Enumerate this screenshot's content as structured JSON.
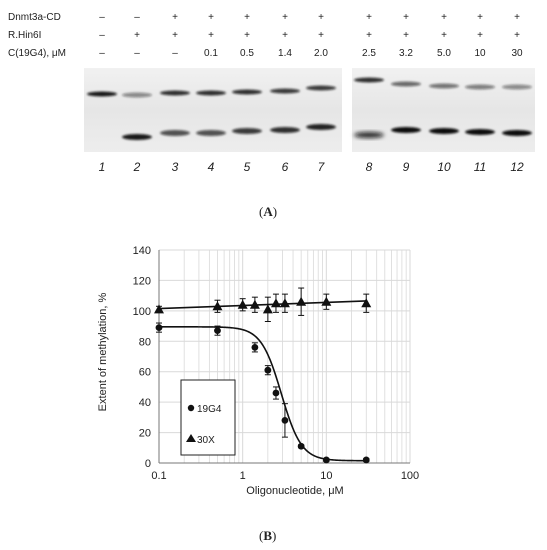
{
  "panel_a": {
    "label": "A",
    "rows": [
      {
        "label": "Dnmt3a-CD",
        "values": [
          "–",
          "–",
          "+",
          "+",
          "+",
          "+",
          "+",
          "+",
          "+",
          "+",
          "+",
          "+"
        ]
      },
      {
        "label": "R.Hin6I",
        "values": [
          "–",
          "+",
          "+",
          "+",
          "+",
          "+",
          "+",
          "+",
          "+",
          "+",
          "+",
          "+"
        ]
      },
      {
        "label": "C(19G4), μM",
        "values": [
          "–",
          "–",
          "–",
          "0.1",
          "0.5",
          "1.4",
          "2.0",
          "2.5",
          "3.2",
          "5.0",
          "10",
          "30"
        ]
      }
    ],
    "lanes": [
      "1",
      "2",
      "3",
      "4",
      "5",
      "6",
      "7",
      "8",
      "9",
      "10",
      "11",
      "12"
    ]
  },
  "panel_b": {
    "label": "B",
    "chart_data": {
      "type": "scatter",
      "xlabel": "Oligonucleotide, μM",
      "ylabel": "Extent of methylation, %",
      "xscale": "log",
      "xlim": [
        0.1,
        100
      ],
      "ylim": [
        0,
        140
      ],
      "xticks": [
        "0.1",
        "1",
        "10",
        "100"
      ],
      "yticks": [
        "0",
        "20",
        "40",
        "60",
        "80",
        "100",
        "120",
        "140"
      ],
      "grid": true,
      "legend_position": "lower-left",
      "series": [
        {
          "name": "19G4",
          "marker": "circle",
          "fit": "sigmoid",
          "x": [
            0.1,
            0.5,
            1.4,
            2.0,
            2.5,
            3.2,
            5.0,
            10,
            30
          ],
          "y": [
            89,
            87,
            76,
            61,
            46,
            28,
            11,
            2,
            2
          ],
          "err": [
            3,
            3,
            3,
            3,
            4,
            11,
            1,
            1,
            1
          ]
        },
        {
          "name": "30X",
          "marker": "triangle",
          "fit": "linear",
          "x": [
            0.1,
            0.5,
            1.0,
            1.4,
            2.0,
            2.5,
            3.2,
            5.0,
            10,
            30
          ],
          "y": [
            101,
            103,
            104,
            104,
            101,
            105,
            105,
            106,
            106,
            105
          ],
          "err": [
            2,
            4,
            4,
            5,
            8,
            6,
            6,
            9,
            5,
            6
          ]
        }
      ],
      "fit_curves": {
        "19G4": {
          "top": 89.5,
          "bottom": 1.5,
          "ic50": 2.9,
          "hill": 3.6
        },
        "30X": {
          "y_at_0.1": 101.5,
          "y_at_30": 106.5
        }
      }
    }
  },
  "colors": {
    "ink": "#111111",
    "grid": "#d9d9d9",
    "gel_bg": "#e9e9e9"
  }
}
